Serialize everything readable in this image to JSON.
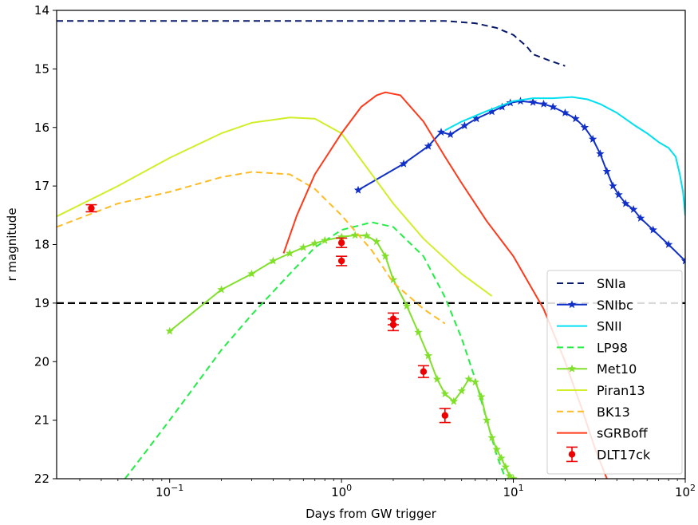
{
  "chart_data": {
    "type": "line",
    "xlabel": "Days from GW trigger",
    "ylabel": "r magnitude",
    "xscale": "log",
    "xlim": [
      0.022,
      100
    ],
    "ylim": [
      22,
      14
    ],
    "y_inverted": true,
    "grid": false,
    "legend_placement": "bottom-right",
    "x_ticks": [
      {
        "value": 0.1,
        "base": "10",
        "exp": "−1"
      },
      {
        "value": 1,
        "base": "10",
        "exp": "0"
      },
      {
        "value": 10,
        "base": "10",
        "exp": "1"
      },
      {
        "value": 100,
        "base": "10",
        "exp": "2"
      }
    ],
    "y_ticks": [
      "14",
      "15",
      "16",
      "17",
      "18",
      "19",
      "20",
      "21",
      "22"
    ],
    "reference_line": {
      "y": 19,
      "color": "#000000",
      "style": "dashed"
    },
    "series": [
      {
        "name": "SNIa",
        "color": "#0a1a6b",
        "style": "dashed",
        "marker": "none",
        "points": [
          [
            0.022,
            14.18
          ],
          [
            0.1,
            14.18
          ],
          [
            1,
            14.18
          ],
          [
            4,
            14.18
          ],
          [
            6,
            14.22
          ],
          [
            8,
            14.3
          ],
          [
            10,
            14.42
          ],
          [
            12,
            14.62
          ],
          [
            13,
            14.75
          ],
          [
            16,
            14.85
          ],
          [
            20,
            14.95
          ]
        ]
      },
      {
        "name": "SNIbc",
        "color": "#1030c8",
        "style": "solid",
        "marker": "star",
        "points": [
          [
            1.25,
            17.07
          ],
          [
            2.3,
            16.62
          ],
          [
            3.2,
            16.32
          ],
          [
            3.8,
            16.08
          ],
          [
            4.3,
            16.12
          ],
          [
            5.2,
            15.97
          ],
          [
            6.1,
            15.85
          ],
          [
            7.5,
            15.73
          ],
          [
            8.6,
            15.65
          ],
          [
            9.6,
            15.58
          ],
          [
            11,
            15.55
          ],
          [
            13,
            15.57
          ],
          [
            15,
            15.6
          ],
          [
            17,
            15.65
          ],
          [
            20,
            15.75
          ],
          [
            23,
            15.85
          ],
          [
            26,
            16.0
          ],
          [
            29,
            16.2
          ],
          [
            32,
            16.45
          ],
          [
            35,
            16.75
          ],
          [
            38,
            17.0
          ],
          [
            41,
            17.15
          ],
          [
            45,
            17.3
          ],
          [
            50,
            17.4
          ],
          [
            55,
            17.55
          ],
          [
            65,
            17.75
          ],
          [
            80,
            18.0
          ],
          [
            100,
            18.28
          ]
        ]
      },
      {
        "name": "SNII",
        "color": "#00e0f0",
        "style": "solid",
        "marker": "none",
        "points": [
          [
            4,
            16.05
          ],
          [
            5,
            15.9
          ],
          [
            7,
            15.72
          ],
          [
            10,
            15.55
          ],
          [
            13,
            15.5
          ],
          [
            17,
            15.5
          ],
          [
            22,
            15.48
          ],
          [
            27,
            15.52
          ],
          [
            32,
            15.6
          ],
          [
            40,
            15.75
          ],
          [
            50,
            15.95
          ],
          [
            60,
            16.1
          ],
          [
            70,
            16.25
          ],
          [
            80,
            16.35
          ],
          [
            88,
            16.5
          ],
          [
            93,
            16.8
          ],
          [
            97,
            17.1
          ],
          [
            100,
            17.5
          ]
        ]
      },
      {
        "name": "LP98",
        "color": "#22ee44",
        "style": "dashed",
        "marker": "none",
        "points": [
          [
            0.055,
            22.0
          ],
          [
            0.07,
            21.6
          ],
          [
            0.1,
            21.0
          ],
          [
            0.15,
            20.3
          ],
          [
            0.2,
            19.8
          ],
          [
            0.3,
            19.2
          ],
          [
            0.5,
            18.5
          ],
          [
            0.7,
            18.05
          ],
          [
            1.0,
            17.75
          ],
          [
            1.5,
            17.62
          ],
          [
            2.0,
            17.7
          ],
          [
            3.0,
            18.2
          ],
          [
            4.0,
            18.9
          ],
          [
            5.0,
            19.6
          ],
          [
            6.0,
            20.3
          ],
          [
            7.0,
            21.0
          ],
          [
            8.0,
            21.6
          ],
          [
            9.0,
            22.0
          ]
        ]
      },
      {
        "name": "Met10",
        "color": "#80e02a",
        "style": "solid",
        "marker": "star",
        "points": [
          [
            0.1,
            19.48
          ],
          [
            0.2,
            18.77
          ],
          [
            0.3,
            18.5
          ],
          [
            0.4,
            18.28
          ],
          [
            0.5,
            18.15
          ],
          [
            0.6,
            18.05
          ],
          [
            0.7,
            17.98
          ],
          [
            0.8,
            17.93
          ],
          [
            1.0,
            17.87
          ],
          [
            1.2,
            17.84
          ],
          [
            1.4,
            17.85
          ],
          [
            1.6,
            17.95
          ],
          [
            1.8,
            18.2
          ],
          [
            2.0,
            18.6
          ],
          [
            2.4,
            19.05
          ],
          [
            2.8,
            19.5
          ],
          [
            3.2,
            19.9
          ],
          [
            3.6,
            20.3
          ],
          [
            4.0,
            20.55
          ],
          [
            4.5,
            20.68
          ],
          [
            5.0,
            20.5
          ],
          [
            5.5,
            20.3
          ],
          [
            6.0,
            20.35
          ],
          [
            6.5,
            20.6
          ],
          [
            7.0,
            21.0
          ],
          [
            7.5,
            21.3
          ],
          [
            8.0,
            21.5
          ],
          [
            8.5,
            21.65
          ],
          [
            9.0,
            21.8
          ],
          [
            9.5,
            21.95
          ],
          [
            10,
            22.0
          ]
        ]
      },
      {
        "name": "Piran13",
        "color": "#d2ee2a",
        "style": "solid",
        "marker": "none",
        "points": [
          [
            0.022,
            17.52
          ],
          [
            0.05,
            17.0
          ],
          [
            0.1,
            16.52
          ],
          [
            0.2,
            16.1
          ],
          [
            0.3,
            15.92
          ],
          [
            0.5,
            15.83
          ],
          [
            0.7,
            15.85
          ],
          [
            1.0,
            16.1
          ],
          [
            1.5,
            16.8
          ],
          [
            2.0,
            17.3
          ],
          [
            3.0,
            17.9
          ],
          [
            5.0,
            18.5
          ],
          [
            7.5,
            18.88
          ]
        ]
      },
      {
        "name": "BK13",
        "color": "#ffbb22",
        "style": "dashed",
        "marker": "none",
        "points": [
          [
            0.022,
            17.7
          ],
          [
            0.05,
            17.3
          ],
          [
            0.1,
            17.1
          ],
          [
            0.2,
            16.85
          ],
          [
            0.3,
            16.76
          ],
          [
            0.5,
            16.8
          ],
          [
            0.7,
            17.05
          ],
          [
            1.0,
            17.5
          ],
          [
            1.5,
            18.1
          ],
          [
            2.0,
            18.65
          ],
          [
            3.0,
            19.1
          ],
          [
            4.0,
            19.35
          ]
        ]
      },
      {
        "name": "sGRBoff",
        "color": "#ff3a1a",
        "style": "solid",
        "marker": "none",
        "points": [
          [
            0.46,
            18.15
          ],
          [
            0.55,
            17.5
          ],
          [
            0.7,
            16.8
          ],
          [
            1.0,
            16.1
          ],
          [
            1.3,
            15.65
          ],
          [
            1.6,
            15.45
          ],
          [
            1.8,
            15.4
          ],
          [
            2.2,
            15.45
          ],
          [
            3.0,
            15.9
          ],
          [
            4.0,
            16.5
          ],
          [
            5.0,
            16.95
          ],
          [
            7.0,
            17.6
          ],
          [
            10,
            18.2
          ],
          [
            15,
            19.1
          ],
          [
            20,
            20.0
          ],
          [
            25,
            20.8
          ],
          [
            30,
            21.5
          ],
          [
            35,
            22.0
          ]
        ]
      },
      {
        "name": "DLT17ck",
        "color": "#ee0000",
        "style": "errorbar",
        "marker": "circle",
        "points": [
          [
            0.035,
            17.38,
            0.06
          ],
          [
            1.0,
            17.97,
            0.08
          ],
          [
            1.0,
            18.28,
            0.08
          ],
          [
            2.0,
            19.27,
            0.1
          ],
          [
            2.0,
            19.37,
            0.1
          ],
          [
            3.0,
            20.17,
            0.1
          ],
          [
            4.0,
            20.92,
            0.12
          ]
        ]
      }
    ]
  }
}
